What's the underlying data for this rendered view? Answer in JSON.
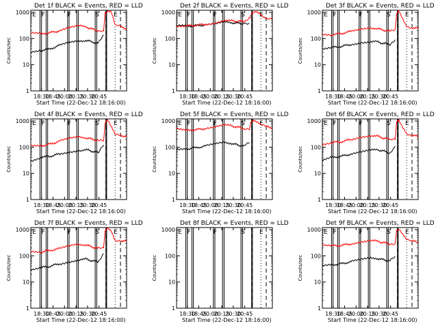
{
  "x_ticks": [
    "18:30",
    "18:45",
    "20:00",
    "20:15",
    "20:30",
    "20:45"
  ],
  "y_ticks": [
    "1",
    "10",
    "100",
    "1000"
  ],
  "ylabel": "Counts/sec",
  "xlabel": "Start Time (22-Dec-12 18:16:00)",
  "marker_letters": [
    "E",
    "F",
    "F",
    "S",
    "E"
  ],
  "colors": {
    "events": "#000000",
    "lld": "#ff0000",
    "axes": "#000000"
  },
  "chart_data": [
    {
      "type": "line",
      "title": "Det 1f BLACK = Events, RED = LLD",
      "ylim": [
        1,
        1200
      ],
      "yscale": "log",
      "series": [
        {
          "color": "black",
          "x": [
            0,
            12,
            25,
            38,
            50,
            62,
            72,
            80,
            88,
            95
          ],
          "values": [
            30,
            35,
            40,
            55,
            70,
            80,
            85,
            75,
            65,
            130
          ]
        },
        {
          "color": "red",
          "x": [
            0,
            12,
            25,
            38,
            50,
            62,
            72,
            80,
            88,
            95,
            97,
            100,
            105,
            110,
            117,
            125
          ],
          "values": [
            160,
            150,
            165,
            200,
            260,
            300,
            280,
            230,
            200,
            200,
            900,
            1100,
            1000,
            320,
            280,
            240
          ]
        }
      ]
    },
    {
      "type": "line",
      "title": "Det 2f BLACK = Events, RED = LLD",
      "ylim": [
        1,
        1200
      ],
      "yscale": "log",
      "series": [
        {
          "color": "black",
          "x": [
            0,
            12,
            25,
            38,
            50,
            62,
            72,
            80,
            88,
            95
          ],
          "values": [
            300,
            300,
            310,
            330,
            350,
            420,
            400,
            380,
            380,
            380
          ]
        },
        {
          "color": "red",
          "x": [
            0,
            12,
            25,
            38,
            50,
            62,
            72,
            80,
            88,
            95,
            98,
            103,
            108,
            113,
            118,
            125
          ],
          "values": [
            300,
            300,
            320,
            350,
            400,
            500,
            470,
            450,
            450,
            600,
            900,
            1000,
            900,
            700,
            600,
            600
          ]
        }
      ]
    },
    {
      "type": "line",
      "title": "Det 3f BLACK = Events, RED = LLD",
      "ylim": [
        1,
        1200
      ],
      "yscale": "log",
      "series": [
        {
          "color": "black",
          "x": [
            0,
            12,
            25,
            38,
            50,
            62,
            72,
            80,
            88,
            95
          ],
          "values": [
            40,
            45,
            50,
            60,
            70,
            75,
            75,
            65,
            60,
            90
          ]
        },
        {
          "color": "red",
          "x": [
            0,
            12,
            25,
            38,
            50,
            62,
            72,
            80,
            88,
            95,
            97,
            100,
            110,
            117,
            125
          ],
          "values": [
            150,
            140,
            155,
            190,
            230,
            260,
            240,
            210,
            190,
            200,
            900,
            1100,
            300,
            260,
            240
          ]
        }
      ]
    },
    {
      "type": "line",
      "title": "Det 4f BLACK = Events, RED = LLD",
      "ylim": [
        1,
        1200
      ],
      "yscale": "log",
      "series": [
        {
          "color": "black",
          "x": [
            0,
            12,
            25,
            38,
            50,
            62,
            72,
            80,
            88,
            95
          ],
          "values": [
            30,
            40,
            45,
            55,
            65,
            75,
            80,
            70,
            60,
            120
          ]
        },
        {
          "color": "red",
          "x": [
            0,
            12,
            25,
            38,
            50,
            62,
            72,
            80,
            88,
            95,
            97,
            100,
            110,
            117,
            125
          ],
          "values": [
            110,
            110,
            130,
            170,
            210,
            240,
            230,
            200,
            180,
            180,
            900,
            1100,
            320,
            280,
            260
          ]
        }
      ]
    },
    {
      "type": "line",
      "title": "Det 5f BLACK = Events, RED = LLD",
      "ylim": [
        1,
        1200
      ],
      "yscale": "log",
      "series": [
        {
          "color": "black",
          "x": [
            0,
            12,
            25,
            38,
            50,
            62,
            72,
            80,
            88,
            95
          ],
          "values": [
            80,
            85,
            95,
            110,
            130,
            150,
            140,
            120,
            110,
            150
          ]
        },
        {
          "color": "red",
          "x": [
            0,
            12,
            25,
            38,
            50,
            62,
            72,
            80,
            88,
            95,
            97,
            100,
            110,
            117,
            125
          ],
          "values": [
            500,
            430,
            460,
            520,
            600,
            700,
            650,
            580,
            520,
            520,
            900,
            1100,
            700,
            600,
            550
          ]
        }
      ]
    },
    {
      "type": "line",
      "title": "Det 6f BLACK = Events, RED = LLD",
      "ylim": [
        1,
        1200
      ],
      "yscale": "log",
      "series": [
        {
          "color": "black",
          "x": [
            0,
            12,
            25,
            38,
            50,
            62,
            72,
            80,
            88,
            95
          ],
          "values": [
            30,
            40,
            45,
            55,
            65,
            75,
            80,
            70,
            60,
            110
          ]
        },
        {
          "color": "red",
          "x": [
            0,
            12,
            25,
            38,
            50,
            62,
            72,
            80,
            88,
            95,
            97,
            100,
            110,
            117,
            125
          ],
          "values": [
            130,
            150,
            160,
            200,
            250,
            280,
            260,
            220,
            200,
            200,
            900,
            1100,
            320,
            280,
            260
          ]
        }
      ]
    },
    {
      "type": "line",
      "title": "Det 7f BLACK = Events, RED = LLD",
      "ylim": [
        1,
        1200
      ],
      "yscale": "log",
      "series": [
        {
          "color": "black",
          "x": [
            0,
            12,
            25,
            38,
            50,
            62,
            72,
            80,
            88,
            95
          ],
          "values": [
            30,
            35,
            40,
            50,
            60,
            70,
            75,
            65,
            60,
            120
          ]
        },
        {
          "color": "red",
          "x": [
            0,
            12,
            25,
            38,
            50,
            62,
            72,
            80,
            88,
            95,
            97,
            100,
            105,
            110,
            117,
            125
          ],
          "values": [
            150,
            140,
            160,
            190,
            240,
            280,
            260,
            220,
            190,
            190,
            900,
            1100,
            900,
            400,
            380,
            360
          ]
        }
      ]
    },
    {
      "type": "line",
      "title": "Det 8f BLACK = Events, RED = LLD",
      "ylim": [
        1,
        1200
      ],
      "yscale": "log",
      "series": []
    },
    {
      "type": "line",
      "title": "Det 9f BLACK = Events, RED = LLD",
      "ylim": [
        1,
        1200
      ],
      "yscale": "log",
      "series": [
        {
          "color": "black",
          "x": [
            0,
            12,
            25,
            38,
            50,
            62,
            72,
            80,
            88,
            95
          ],
          "values": [
            40,
            45,
            50,
            60,
            70,
            80,
            80,
            70,
            65,
            95
          ]
        },
        {
          "color": "red",
          "x": [
            0,
            12,
            25,
            38,
            50,
            62,
            72,
            80,
            88,
            95,
            97,
            100,
            110,
            117,
            125
          ],
          "values": [
            260,
            240,
            250,
            290,
            340,
            380,
            360,
            320,
            290,
            290,
            900,
            1100,
            400,
            360,
            340
          ]
        }
      ]
    }
  ]
}
